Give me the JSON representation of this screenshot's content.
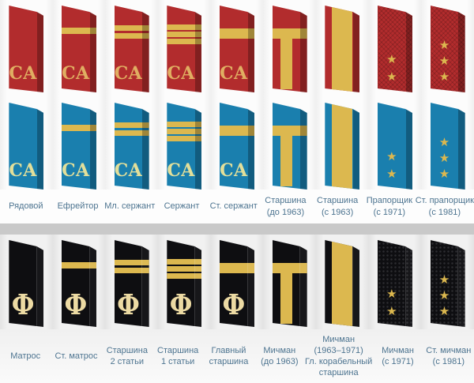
{
  "glyphs": {
    "star": "★"
  },
  "colors": {
    "board_red": "#b22c2d",
    "board_blue": "#1a7fae",
    "board_black": "#0e0e11",
    "stripe_gold": "#dcb84f",
    "letter_on_red": "#e0ae62",
    "letter_on_blue": "#e2df9a",
    "letter_on_black": "#ecdaa3",
    "label_text": "#4d7490",
    "divider": "#c9c9c9"
  },
  "army": {
    "letter": "СА",
    "columns": [
      {
        "label_lines": [
          "Рядовой"
        ],
        "insignia": "plain",
        "has_letter": true
      },
      {
        "label_lines": [
          "Ефрейтор"
        ],
        "insignia": "stripe1",
        "has_letter": true
      },
      {
        "label_lines": [
          "Мл. сержант"
        ],
        "insignia": "stripe2",
        "has_letter": true
      },
      {
        "label_lines": [
          "Сержант"
        ],
        "insignia": "stripe3",
        "has_letter": true
      },
      {
        "label_lines": [
          "Ст. сержант"
        ],
        "insignia": "wide",
        "has_letter": true
      },
      {
        "label_lines": [
          "Старшина",
          "(до 1963)"
        ],
        "insignia": "tbar",
        "has_letter": false
      },
      {
        "label_lines": [
          "Старшина",
          "(с 1963)"
        ],
        "insignia": "band",
        "has_letter": false
      },
      {
        "label_lines": [
          "Прапорщик",
          "(с 1971)"
        ],
        "insignia": "stars2",
        "has_letter": false
      },
      {
        "label_lines": [
          "Ст. прапорщик",
          "(с 1981)"
        ],
        "insignia": "stars3",
        "has_letter": false
      }
    ]
  },
  "navy": {
    "letter": "Ф",
    "columns": [
      {
        "label_lines": [
          "Матрос"
        ],
        "insignia": "plain",
        "has_letter": true
      },
      {
        "label_lines": [
          "Ст. матрос"
        ],
        "insignia": "stripe1",
        "has_letter": true
      },
      {
        "label_lines": [
          "Старшина",
          "2 статьи"
        ],
        "insignia": "stripe2",
        "has_letter": true
      },
      {
        "label_lines": [
          "Старшина",
          "1 статьи"
        ],
        "insignia": "stripe3",
        "has_letter": true
      },
      {
        "label_lines": [
          "Главный",
          "старшина"
        ],
        "insignia": "wide",
        "has_letter": true
      },
      {
        "label_lines": [
          "Мичман",
          "(до 1963)"
        ],
        "insignia": "tbar",
        "has_letter": false
      },
      {
        "label_lines": [
          "Мичман",
          "(1963–1971)",
          "Гл. корабельный",
          "старшина"
        ],
        "insignia": "band",
        "has_letter": false
      },
      {
        "label_lines": [
          "Мичман",
          "(с 1971)"
        ],
        "insignia": "stars2",
        "has_letter": false
      },
      {
        "label_lines": [
          "Ст. мичман",
          "(с 1981)"
        ],
        "insignia": "stars3",
        "has_letter": false
      }
    ]
  }
}
